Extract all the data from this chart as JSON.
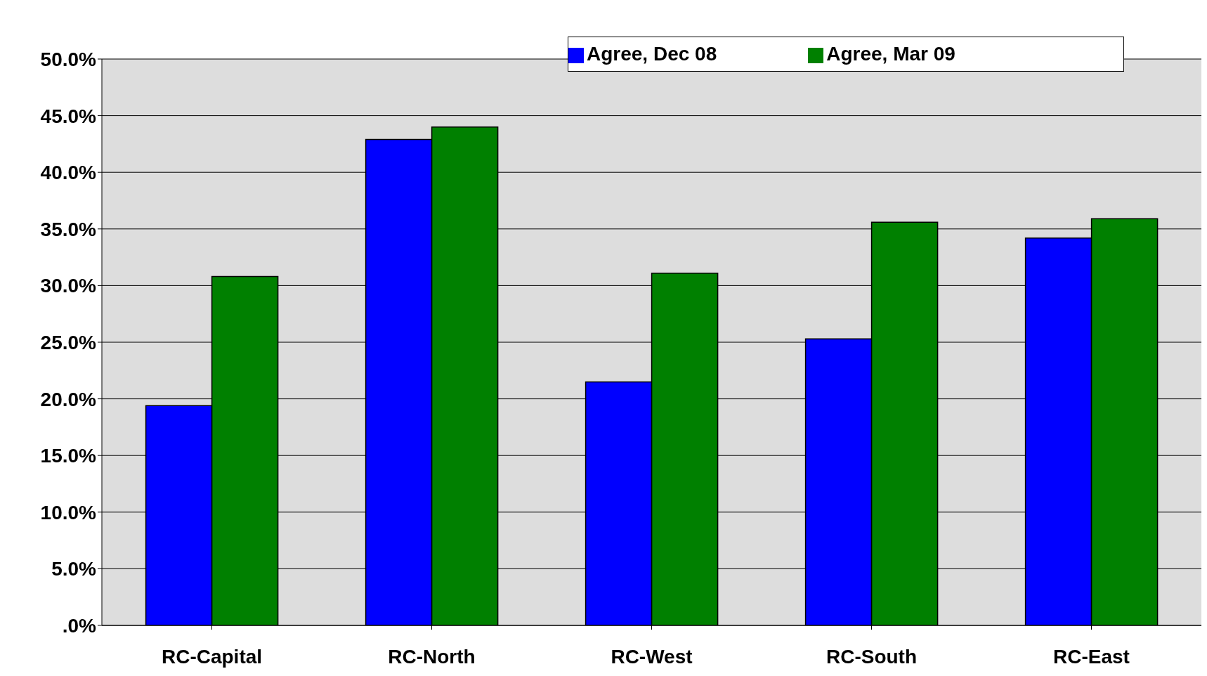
{
  "chart_data": {
    "type": "bar",
    "categories": [
      "RC-Capital",
      "RC-North",
      "RC-West",
      "RC-South",
      "RC-East"
    ],
    "series": [
      {
        "name": "Agree, Dec 08",
        "color": "#0000ff",
        "values": [
          19.4,
          42.9,
          21.5,
          25.3,
          34.2
        ]
      },
      {
        "name": "Agree, Mar 09",
        "color": "#008000",
        "values": [
          30.8,
          44.0,
          31.1,
          35.6,
          35.9
        ]
      }
    ],
    "ylim": [
      0,
      50
    ],
    "yticks": [
      {
        "value": 0,
        "label": ".0%"
      },
      {
        "value": 5,
        "label": "5.0%"
      },
      {
        "value": 10,
        "label": "10.0%"
      },
      {
        "value": 15,
        "label": "15.0%"
      },
      {
        "value": 20,
        "label": "20.0%"
      },
      {
        "value": 25,
        "label": "25.0%"
      },
      {
        "value": 30,
        "label": "30.0%"
      },
      {
        "value": 35,
        "label": "35.0%"
      },
      {
        "value": 40,
        "label": "40.0%"
      },
      {
        "value": 45,
        "label": "45.0%"
      },
      {
        "value": 50,
        "label": "50.0%"
      }
    ],
    "grid": "y",
    "legend": "top right"
  }
}
